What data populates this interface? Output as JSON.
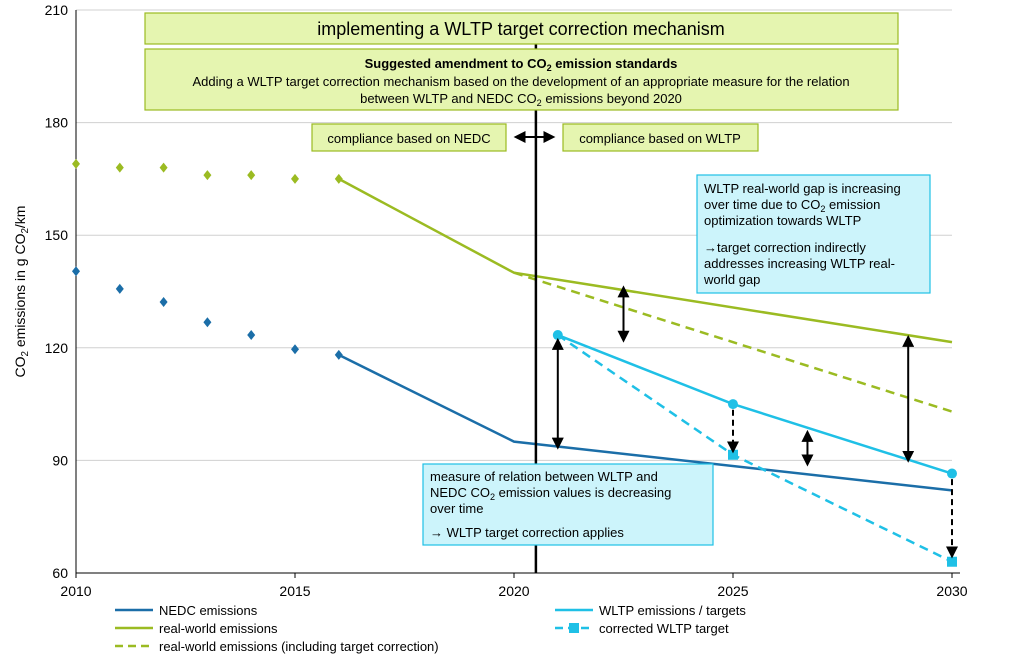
{
  "chart_data": {
    "type": "line",
    "ylabel": "CO2 emissions in g CO2/km",
    "xlim": [
      2010,
      2030
    ],
    "ylim": [
      60,
      210
    ],
    "xticks": [
      "2010",
      "2015",
      "2020",
      "2025",
      "2030"
    ],
    "yticks": [
      "60",
      "90",
      "120",
      "150",
      "180",
      "210"
    ],
    "grid": "horizontal",
    "legend_position": "bottom",
    "series": [
      {
        "name": "NEDC emissions",
        "color": "#1b6ea8",
        "style": "solid",
        "points_historic": [
          [
            2010,
            140.4
          ],
          [
            2011,
            135.7
          ],
          [
            2012,
            132.2
          ],
          [
            2013,
            126.8
          ],
          [
            2014,
            123.4
          ],
          [
            2015,
            119.6
          ]
        ],
        "line": [
          [
            2016,
            118.1
          ],
          [
            2020,
            95.0
          ],
          [
            2030,
            82.0
          ]
        ]
      },
      {
        "name": "real-world emissions",
        "color": "#9bbb22",
        "style": "solid",
        "points_historic": [
          [
            2010,
            169.0
          ],
          [
            2011,
            168.0
          ],
          [
            2012,
            168.0
          ],
          [
            2013,
            166.0
          ],
          [
            2014,
            166.0
          ],
          [
            2015,
            165.0
          ]
        ],
        "line": [
          [
            2016,
            165.0
          ],
          [
            2020,
            140.0
          ],
          [
            2030,
            121.5
          ]
        ]
      },
      {
        "name": "real-world emissions (including target correction)",
        "color": "#9bbb22",
        "style": "dashed",
        "line": [
          [
            2020,
            140.0
          ],
          [
            2030,
            103.0
          ]
        ]
      },
      {
        "name": "WLTP emissions / targets",
        "color": "#1fc0e6",
        "style": "solid",
        "line": [
          [
            2021,
            123.4
          ],
          [
            2025,
            105.0
          ],
          [
            2030,
            86.5
          ]
        ],
        "markers": [
          [
            2021,
            123.4
          ],
          [
            2025,
            105.0
          ],
          [
            2030,
            86.5
          ]
        ]
      },
      {
        "name": "corrected WLTP target",
        "color": "#1fc0e6",
        "style": "dashed",
        "line": [
          [
            2021,
            123.4
          ],
          [
            2025,
            91.5
          ],
          [
            2030,
            63.0
          ]
        ],
        "markers": [
          [
            2025,
            91.5
          ],
          [
            2030,
            63.0
          ]
        ]
      }
    ],
    "vertical_line_x": 2020.5,
    "annotations": {
      "title_box": "implementing a WLTP target correction mechanism",
      "amendment_heading": "Suggested amendment to CO2 emission standards",
      "amendment_line1": "Adding  a WLTP target correction mechanism based on the development of an appropriate measure for the relation",
      "amendment_line2": "between WLTP and NEDC CO2 emissions beyond 2020",
      "compliance_nedc": "compliance based on NEDC",
      "compliance_wltp": "compliance based on WLTP",
      "gap_box_lines": [
        "WLTP real-world gap is increasing",
        "over time due to CO2 emission",
        "optimization towards WLTP"
      ],
      "gap_box_lines2": [
        "→target correction indirectly",
        "addresses increasing WLTP real-",
        "world gap"
      ],
      "measure_box_lines": [
        "measure of relation between WLTP and",
        "NEDC CO2 emission values is decreasing",
        "over time"
      ],
      "measure_box_line2": "→ WLTP target correction applies"
    },
    "double_arrows": [
      [
        2022.5,
        136.0,
        122.0
      ],
      [
        2021.0,
        122.0,
        93.5
      ],
      [
        2026.7,
        97.5,
        89.0
      ],
      [
        2029.0,
        122.8,
        90.0
      ]
    ],
    "dashed_arrows": [
      [
        2025,
        103.5,
        92.5
      ],
      [
        2030,
        85.0,
        64.5
      ]
    ]
  },
  "legend": [
    {
      "label": "NEDC emissions",
      "color": "#1b6ea8",
      "style": "solid"
    },
    {
      "label": "WLTP emissions / targets",
      "color": "#1fc0e6",
      "style": "solid"
    },
    {
      "label": "real-world emissions",
      "color": "#9bbb22",
      "style": "solid"
    },
    {
      "label": "corrected WLTP target",
      "color": "#1fc0e6",
      "style": "dashed-square"
    },
    {
      "label": "real-world emissions (including target correction)",
      "color": "#9bbb22",
      "style": "dashed"
    }
  ]
}
